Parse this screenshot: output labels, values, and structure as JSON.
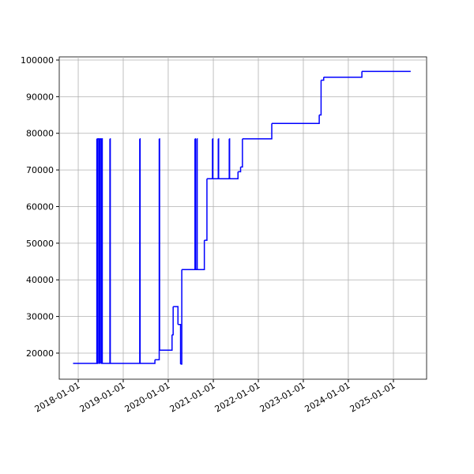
{
  "chart_data": {
    "type": "line",
    "drawstyle": "steps-post",
    "color": "#0000ff",
    "grid": true,
    "x": [
      "2017-11-20",
      "2018-06-01",
      "2018-06-05",
      "2018-06-10",
      "2018-06-20",
      "2018-06-25",
      "2018-07-05",
      "2018-07-10",
      "2018-07-15",
      "2018-09-15",
      "2018-09-18",
      "2019-05-15",
      "2019-05-18",
      "2019-09-15",
      "2019-10-20",
      "2019-10-23",
      "2020-02-01",
      "2020-02-10",
      "2020-03-20",
      "2020-04-10",
      "2020-04-20",
      "2020-08-05",
      "2020-08-08",
      "2020-08-20",
      "2020-08-23",
      "2020-10-20",
      "2020-11-10",
      "2020-12-25",
      "2020-12-28",
      "2021-02-10",
      "2021-02-13",
      "2021-05-10",
      "2021-05-13",
      "2021-07-20",
      "2021-08-10",
      "2021-08-25",
      "2022-04-20",
      "2023-05-10",
      "2023-05-25",
      "2023-06-15",
      "2024-04-20",
      "2025-05-21"
    ],
    "values": [
      17200,
      78500,
      17200,
      78500,
      17200,
      78500,
      17200,
      78500,
      17200,
      78500,
      17200,
      78500,
      17200,
      18200,
      78500,
      20800,
      25000,
      32700,
      27800,
      17000,
      42800,
      78500,
      42800,
      78500,
      42800,
      50800,
      67600,
      78500,
      67600,
      78500,
      67600,
      78500,
      67600,
      69500,
      70800,
      78500,
      82700,
      85000,
      94500,
      95300,
      96900,
      96900
    ],
    "xlim": [
      "2017-07-31",
      "2025-09-27"
    ],
    "xticks": [
      "2018-01-01",
      "2019-01-01",
      "2020-01-01",
      "2021-01-01",
      "2022-01-01",
      "2023-01-01",
      "2024-01-01",
      "2025-01-01"
    ],
    "ylim": [
      12880,
      100860
    ],
    "yticks": [
      20000,
      30000,
      40000,
      50000,
      60000,
      70000,
      80000,
      90000,
      100000
    ]
  }
}
